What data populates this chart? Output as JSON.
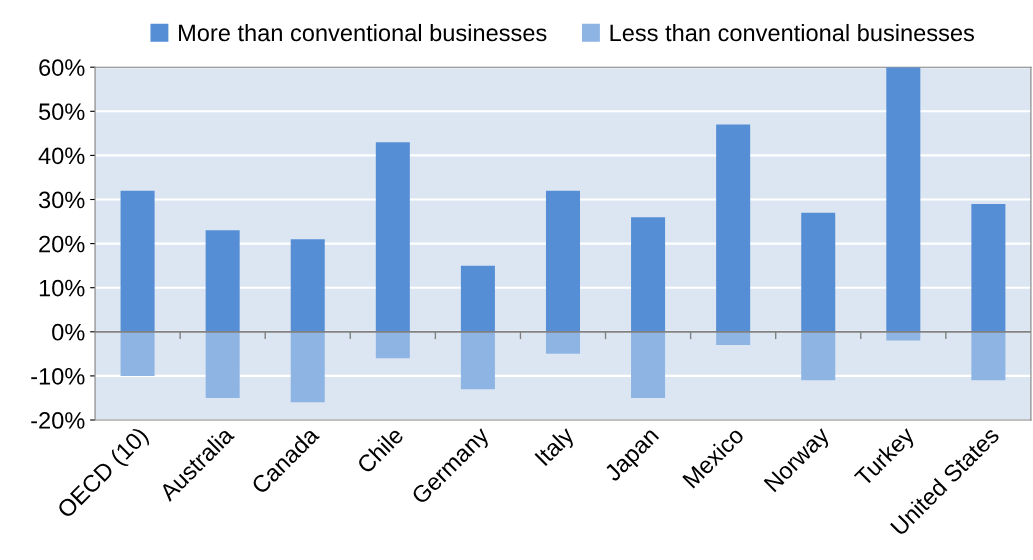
{
  "chart_data": {
    "type": "bar",
    "stacked": true,
    "categories": [
      "OECD (10)",
      "Australia",
      "Canada",
      "Chile",
      "Germany",
      "Italy",
      "Japan",
      "Mexico",
      "Norway",
      "Turkey",
      "United States"
    ],
    "series": [
      {
        "name": "More than conventional businesses",
        "color": "#558ed5",
        "values": [
          32,
          23,
          21,
          43,
          15,
          32,
          26,
          47,
          27,
          60,
          29
        ]
      },
      {
        "name": "Less than conventional businesses",
        "color": "#8eb4e3",
        "values": [
          -10,
          -15,
          -16,
          -6,
          -13,
          -5,
          -15,
          -3,
          -11,
          -2,
          -11
        ]
      }
    ],
    "ylim": [
      -20,
      60
    ],
    "yticks": [
      {
        "value": -20,
        "label": "-20%"
      },
      {
        "value": -10,
        "label": "-10%"
      },
      {
        "value": 0,
        "label": "0%"
      },
      {
        "value": 10,
        "label": "10%"
      },
      {
        "value": 20,
        "label": "20%"
      },
      {
        "value": 30,
        "label": "30%"
      },
      {
        "value": 40,
        "label": "40%"
      },
      {
        "value": 50,
        "label": "50%"
      },
      {
        "value": 60,
        "label": "60%"
      }
    ],
    "grid": "y",
    "legend": "top"
  }
}
